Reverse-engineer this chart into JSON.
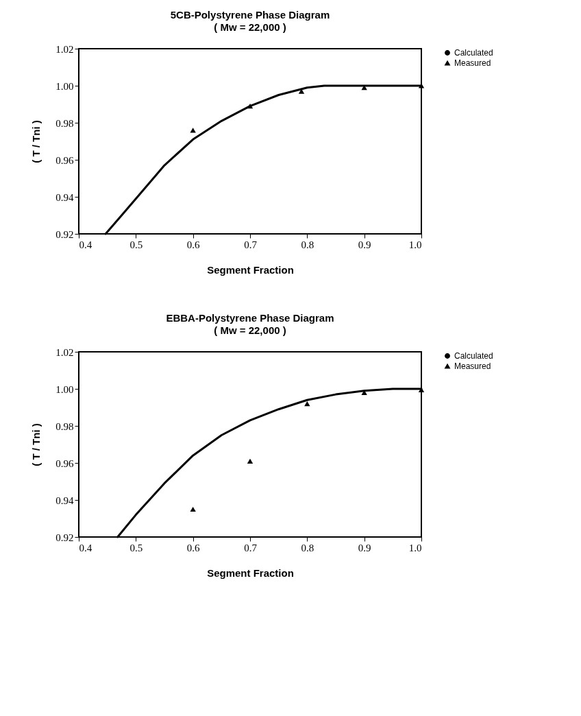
{
  "chart_data": [
    {
      "type": "line",
      "title": "5CB-Polystyrene Phase Diagram",
      "subtitle": "( Mw = 22,000 )",
      "xlabel": "Segment Fraction",
      "ylabel": "( T / Tni )",
      "xlim": [
        0.4,
        1.0
      ],
      "xticks": [
        0.4,
        0.5,
        0.6,
        0.7,
        0.8,
        0.9,
        {
          "value": 1.0,
          "label": "1.0"
        }
      ],
      "ylim": [
        0.92,
        1.02
      ],
      "yticks": [
        0.92,
        0.94,
        0.96,
        0.98,
        {
          "value": 1.0,
          "label": "1.00"
        },
        1.02
      ],
      "grid": false,
      "legend": "right",
      "series": [
        {
          "name": "Calculated",
          "type": "line",
          "color": "#000000",
          "x": [
            0.447,
            0.475,
            0.5,
            0.55,
            0.6,
            0.65,
            0.7,
            0.75,
            0.8,
            0.83,
            0.9,
            1.0
          ],
          "values": [
            0.92,
            0.93,
            0.939,
            0.957,
            0.971,
            0.981,
            0.989,
            0.995,
            0.999,
            1.0,
            1.0,
            1.0
          ]
        },
        {
          "name": "Measured",
          "type": "scatter",
          "marker": "triangle",
          "color": "#000000",
          "x": [
            0.6,
            0.7,
            0.79,
            0.9,
            1.0
          ],
          "values": [
            0.976,
            0.989,
            0.997,
            0.999,
            1.0
          ]
        }
      ]
    },
    {
      "type": "line",
      "title": "EBBA-Polystyrene Phase Diagram",
      "subtitle": "( Mw = 22,000 )",
      "xlabel": "Segment Fraction",
      "ylabel": "( T / Tni )",
      "xlim": [
        0.4,
        1.0
      ],
      "xticks": [
        0.4,
        0.5,
        0.6,
        0.7,
        0.8,
        0.9,
        {
          "value": 1.0,
          "label": "1.0"
        }
      ],
      "ylim": [
        0.92,
        1.02
      ],
      "yticks": [
        0.92,
        0.94,
        0.96,
        0.98,
        {
          "value": 1.0,
          "label": "1.00"
        },
        1.02
      ],
      "grid": false,
      "legend": "right",
      "series": [
        {
          "name": "Calculated",
          "type": "line",
          "color": "#000000",
          "x": [
            0.468,
            0.5,
            0.55,
            0.6,
            0.65,
            0.7,
            0.75,
            0.8,
            0.85,
            0.9,
            0.95,
            1.0
          ],
          "values": [
            0.92,
            0.932,
            0.949,
            0.964,
            0.975,
            0.983,
            0.989,
            0.994,
            0.997,
            0.999,
            1.0,
            1.0
          ]
        },
        {
          "name": "Measured",
          "type": "scatter",
          "marker": "triangle",
          "color": "#000000",
          "x": [
            0.6,
            0.7,
            0.8,
            0.9,
            1.0
          ],
          "values": [
            0.935,
            0.961,
            0.992,
            0.998,
            0.9995
          ]
        }
      ]
    }
  ]
}
